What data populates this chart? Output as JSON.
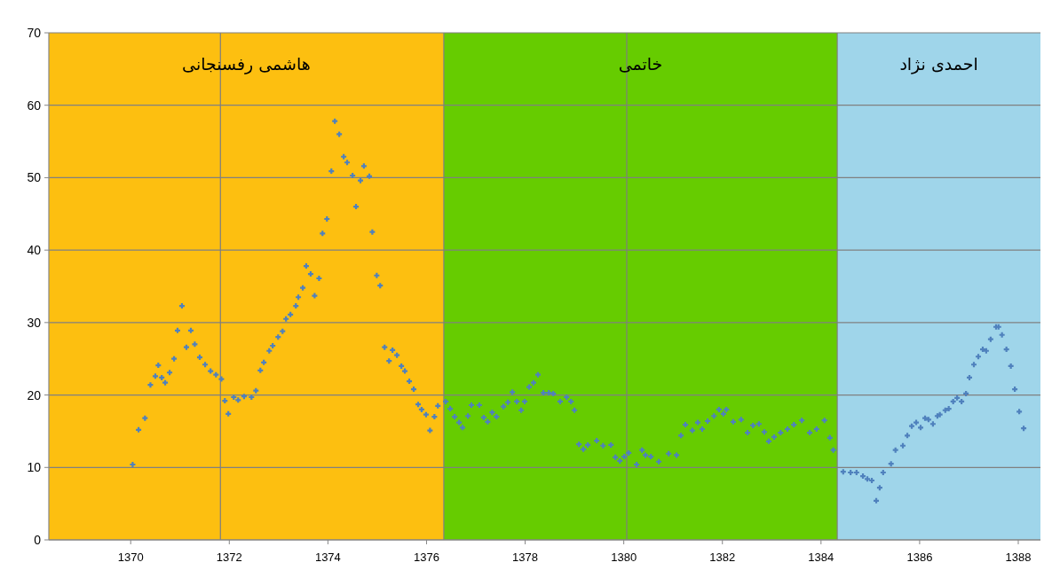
{
  "chart_data": {
    "type": "scatter",
    "x": [
      1370.04,
      1370.16,
      1370.29,
      1370.4,
      1370.5,
      1370.56,
      1370.63,
      1370.7,
      1370.79,
      1370.88,
      1370.95,
      1371.04,
      1371.13,
      1371.22,
      1371.3,
      1371.4,
      1371.51,
      1371.62,
      1371.73,
      1371.84,
      1371.91,
      1371.98,
      1372.09,
      1372.18,
      1372.3,
      1372.45,
      1372.54,
      1372.63,
      1372.7,
      1372.81,
      1372.88,
      1372.99,
      1373.08,
      1373.15,
      1373.24,
      1373.35,
      1373.4,
      1373.49,
      1373.56,
      1373.65,
      1373.73,
      1373.82,
      1373.89,
      1373.98,
      1374.07,
      1374.14,
      1374.23,
      1374.32,
      1374.39,
      1374.5,
      1374.57,
      1374.66,
      1374.73,
      1374.84,
      1374.9,
      1374.99,
      1375.06,
      1375.15,
      1375.24,
      1375.31,
      1375.4,
      1375.49,
      1375.56,
      1375.65,
      1375.74,
      1375.83,
      1375.9,
      1375.99,
      1376.07,
      1376.16,
      1376.23,
      1376.39,
      1376.48,
      1376.57,
      1376.66,
      1376.73,
      1376.84,
      1376.91,
      1377.07,
      1377.16,
      1377.24,
      1377.33,
      1377.42,
      1377.56,
      1377.65,
      1377.74,
      1377.83,
      1377.92,
      1377.99,
      1378.08,
      1378.17,
      1378.26,
      1378.37,
      1378.48,
      1378.57,
      1378.71,
      1378.84,
      1378.93,
      1379.0,
      1379.09,
      1379.18,
      1379.27,
      1379.45,
      1379.58,
      1379.74,
      1379.83,
      1379.92,
      1380.01,
      1380.1,
      1380.26,
      1380.37,
      1380.44,
      1380.55,
      1380.71,
      1380.91,
      1381.07,
      1381.16,
      1381.25,
      1381.39,
      1381.5,
      1381.59,
      1381.7,
      1381.83,
      1381.93,
      1382.02,
      1382.08,
      1382.22,
      1382.38,
      1382.51,
      1382.62,
      1382.74,
      1382.85,
      1382.94,
      1383.05,
      1383.18,
      1383.32,
      1383.45,
      1383.61,
      1383.77,
      1383.91,
      1384.07,
      1384.18,
      1384.25,
      1384.45,
      1384.6,
      1384.72,
      1384.85,
      1384.94,
      1385.03,
      1385.12,
      1385.19,
      1385.26,
      1385.42,
      1385.51,
      1385.66,
      1385.75,
      1385.84,
      1385.93,
      1386.02,
      1386.11,
      1386.18,
      1386.27,
      1386.36,
      1386.41,
      1386.52,
      1386.59,
      1386.68,
      1386.76,
      1386.85,
      1386.94,
      1387.01,
      1387.1,
      1387.19,
      1387.28,
      1387.35,
      1387.44,
      1387.55,
      1387.6,
      1387.67,
      1387.76,
      1387.85,
      1387.93,
      1388.02,
      1388.11
    ],
    "values": [
      10.4,
      15.2,
      16.8,
      21.4,
      22.6,
      24.1,
      22.4,
      21.7,
      23.1,
      25.0,
      28.9,
      32.3,
      26.6,
      28.9,
      27.0,
      25.2,
      24.2,
      23.3,
      22.8,
      22.2,
      19.2,
      17.4,
      19.7,
      19.3,
      19.8,
      19.7,
      20.6,
      23.4,
      24.5,
      26.1,
      26.8,
      28.0,
      28.8,
      30.5,
      31.1,
      32.3,
      33.5,
      34.8,
      37.8,
      36.7,
      33.7,
      36.1,
      42.3,
      44.3,
      50.9,
      57.8,
      56.0,
      52.9,
      52.1,
      50.3,
      46.0,
      49.6,
      51.6,
      50.2,
      42.5,
      36.5,
      35.1,
      26.6,
      24.7,
      26.2,
      25.5,
      24.0,
      23.3,
      21.9,
      20.8,
      18.7,
      18.0,
      17.3,
      15.1,
      17.0,
      18.5,
      19.1,
      18.1,
      17.0,
      16.2,
      15.5,
      17.1,
      18.6,
      18.6,
      16.9,
      16.3,
      17.6,
      17.0,
      18.4,
      19.0,
      20.4,
      19.1,
      17.9,
      19.1,
      21.1,
      21.7,
      22.8,
      20.3,
      20.3,
      20.2,
      19.1,
      19.7,
      19.1,
      17.9,
      13.2,
      12.5,
      13.1,
      13.7,
      13.0,
      13.1,
      11.4,
      10.9,
      11.5,
      12.0,
      10.4,
      12.4,
      11.7,
      11.5,
      10.8,
      11.9,
      11.7,
      14.4,
      15.9,
      15.1,
      16.2,
      15.3,
      16.4,
      17.1,
      18.0,
      17.4,
      18.0,
      16.3,
      16.6,
      14.8,
      15.8,
      16.0,
      14.9,
      13.6,
      14.2,
      14.8,
      15.3,
      15.9,
      16.5,
      14.8,
      15.3,
      16.5,
      14.1,
      12.4,
      9.4,
      9.3,
      9.3,
      8.8,
      8.4,
      8.2,
      5.4,
      7.2,
      9.3,
      10.5,
      12.4,
      13.0,
      14.4,
      15.7,
      16.2,
      15.5,
      16.8,
      16.6,
      16.0,
      17.1,
      17.3,
      17.9,
      18.1,
      19.1,
      19.6,
      19.1,
      20.2,
      22.4,
      24.2,
      25.3,
      26.3,
      26.1,
      27.7,
      29.4,
      29.4,
      28.3,
      26.3,
      24.0,
      20.8,
      17.7,
      15.4
    ],
    "color": "#4f81bd",
    "marker": "cross",
    "xlim": [
      1368.34,
      1388.45
    ],
    "ylim": [
      0,
      70
    ],
    "xticks": [
      1370,
      1372,
      1374,
      1376,
      1378,
      1380,
      1382,
      1384,
      1386,
      1388
    ],
    "yticks": [
      0,
      10,
      20,
      30,
      40,
      50,
      60,
      70
    ],
    "grid": "y",
    "bands": [
      {
        "axis": "x",
        "from": 1368.34,
        "to": 1376.35,
        "label": "هاشمی رفسنجانی",
        "color": "#fdbf10"
      },
      {
        "axis": "x",
        "from": 1376.35,
        "to": 1384.33,
        "label": "خاتمی",
        "color": "#66cc00"
      },
      {
        "axis": "x",
        "from": 1384.33,
        "to": 1388.45,
        "label": "احمدی نژاد",
        "color": "#9fd5ea"
      }
    ],
    "ref_lines": [
      {
        "axis": "x",
        "value": 1371.82,
        "color": "#7f7f7f"
      },
      {
        "axis": "x",
        "value": 1380.06,
        "color": "#7f7f7f"
      }
    ]
  }
}
